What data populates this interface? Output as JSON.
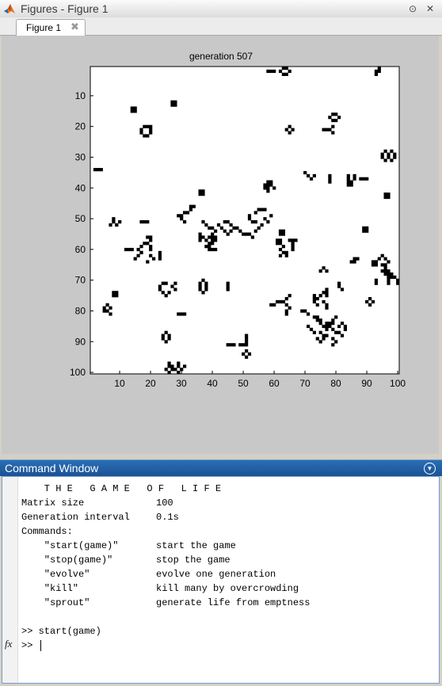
{
  "figures_window": {
    "title": "Figures - Figure 1",
    "tab_label": "Figure 1"
  },
  "figure": {
    "title": "generation 507",
    "x_ticks": [
      "10",
      "20",
      "30",
      "40",
      "50",
      "60",
      "70",
      "80",
      "90",
      "100"
    ],
    "y_ticks": [
      "10",
      "20",
      "30",
      "40",
      "50",
      "60",
      "70",
      "80",
      "90",
      "100"
    ],
    "xlim": [
      1,
      100
    ],
    "ylim": [
      1,
      100
    ],
    "y_axis": "reversed",
    "grid": false,
    "live_cells": [
      [
        2,
        58
      ],
      [
        2,
        59
      ],
      [
        2,
        60
      ],
      [
        1,
        63
      ],
      [
        1,
        64
      ],
      [
        3,
        63
      ],
      [
        3,
        64
      ],
      [
        2,
        62
      ],
      [
        2,
        65
      ],
      [
        2,
        93
      ],
      [
        3,
        93
      ],
      [
        1,
        94
      ],
      [
        2,
        94
      ],
      [
        12,
        27
      ],
      [
        12,
        28
      ],
      [
        13,
        27
      ],
      [
        13,
        28
      ],
      [
        14,
        14
      ],
      [
        15,
        14
      ],
      [
        14,
        15
      ],
      [
        15,
        15
      ],
      [
        16,
        79
      ],
      [
        16,
        80
      ],
      [
        18,
        79
      ],
      [
        18,
        80
      ],
      [
        17,
        78
      ],
      [
        17,
        81
      ],
      [
        20,
        18
      ],
      [
        20,
        19
      ],
      [
        20,
        20
      ],
      [
        22,
        17
      ],
      [
        22,
        20
      ],
      [
        23,
        18
      ],
      [
        23,
        19
      ],
      [
        21,
        17
      ],
      [
        21,
        20
      ],
      [
        20,
        65
      ],
      [
        21,
        64
      ],
      [
        21,
        66
      ],
      [
        22,
        65
      ],
      [
        21,
        76
      ],
      [
        21,
        77
      ],
      [
        21,
        78
      ],
      [
        20,
        79
      ],
      [
        22,
        79
      ],
      [
        29,
        95
      ],
      [
        30,
        95
      ],
      [
        28,
        96
      ],
      [
        31,
        96
      ],
      [
        29,
        97
      ],
      [
        30,
        97
      ],
      [
        28,
        98
      ],
      [
        31,
        98
      ],
      [
        29,
        99
      ],
      [
        30,
        99
      ],
      [
        34,
        2
      ],
      [
        34,
        3
      ],
      [
        34,
        4
      ],
      [
        35,
        70
      ],
      [
        36,
        71
      ],
      [
        37,
        72
      ],
      [
        36,
        73
      ],
      [
        36,
        78
      ],
      [
        37,
        78
      ],
      [
        38,
        78
      ],
      [
        36,
        84
      ],
      [
        37,
        84
      ],
      [
        38,
        84
      ],
      [
        38,
        85
      ],
      [
        39,
        85
      ],
      [
        37,
        86
      ],
      [
        36,
        86
      ],
      [
        39,
        84
      ],
      [
        37,
        88
      ],
      [
        37,
        89
      ],
      [
        37,
        90
      ],
      [
        38,
        58
      ],
      [
        39,
        58
      ],
      [
        40,
        58
      ],
      [
        41,
        58
      ],
      [
        39,
        57
      ],
      [
        40,
        57
      ],
      [
        38,
        59
      ],
      [
        39,
        59
      ],
      [
        40,
        60
      ],
      [
        41,
        36
      ],
      [
        41,
        37
      ],
      [
        42,
        36
      ],
      [
        42,
        37
      ],
      [
        42,
        96
      ],
      [
        43,
        96
      ],
      [
        42,
        97
      ],
      [
        43,
        97
      ],
      [
        46,
        33
      ],
      [
        46,
        34
      ],
      [
        47,
        33
      ],
      [
        48,
        31
      ],
      [
        48,
        32
      ],
      [
        49,
        30
      ],
      [
        50,
        30
      ],
      [
        49,
        29
      ],
      [
        51,
        31
      ],
      [
        47,
        55
      ],
      [
        47,
        56
      ],
      [
        47,
        57
      ],
      [
        48,
        54
      ],
      [
        49,
        52
      ],
      [
        50,
        52
      ],
      [
        51,
        53
      ],
      [
        51,
        54
      ],
      [
        50,
        57
      ],
      [
        51,
        58
      ],
      [
        49,
        59
      ],
      [
        50,
        8
      ],
      [
        51,
        8
      ],
      [
        52,
        7
      ],
      [
        52,
        9
      ],
      [
        51,
        10
      ],
      [
        51,
        17
      ],
      [
        51,
        18
      ],
      [
        51,
        19
      ],
      [
        51,
        37
      ],
      [
        52,
        38
      ],
      [
        53,
        39
      ],
      [
        53,
        40
      ],
      [
        54,
        41
      ],
      [
        51,
        44
      ],
      [
        51,
        45
      ],
      [
        52,
        46
      ],
      [
        53,
        47
      ],
      [
        53,
        48
      ],
      [
        54,
        49
      ],
      [
        55,
        50
      ],
      [
        55,
        51
      ],
      [
        55,
        52
      ],
      [
        56,
        53
      ],
      [
        54,
        54
      ],
      [
        53,
        55
      ],
      [
        52,
        56
      ],
      [
        52,
        42
      ],
      [
        53,
        43
      ],
      [
        54,
        44
      ],
      [
        55,
        45
      ],
      [
        54,
        46
      ],
      [
        53,
        89
      ],
      [
        53,
        90
      ],
      [
        54,
        89
      ],
      [
        54,
        90
      ],
      [
        54,
        62
      ],
      [
        54,
        63
      ],
      [
        55,
        62
      ],
      [
        55,
        63
      ],
      [
        55,
        36
      ],
      [
        56,
        36
      ],
      [
        57,
        36
      ],
      [
        56,
        37
      ],
      [
        57,
        38
      ],
      [
        56,
        39
      ],
      [
        55,
        40
      ],
      [
        56,
        40
      ],
      [
        57,
        40
      ],
      [
        56,
        41
      ],
      [
        57,
        41
      ],
      [
        58,
        39
      ],
      [
        58,
        40
      ],
      [
        59,
        38
      ],
      [
        59,
        39
      ],
      [
        60,
        39
      ],
      [
        60,
        40
      ],
      [
        60,
        41
      ],
      [
        56,
        19
      ],
      [
        56,
        20
      ],
      [
        57,
        20
      ],
      [
        58,
        18
      ],
      [
        58,
        19
      ],
      [
        59,
        17
      ],
      [
        60,
        16
      ],
      [
        61,
        17
      ],
      [
        59,
        20
      ],
      [
        60,
        20
      ],
      [
        57,
        65
      ],
      [
        57,
        66
      ],
      [
        57,
        67
      ],
      [
        57,
        61
      ],
      [
        57,
        62
      ],
      [
        58,
        61
      ],
      [
        58,
        62
      ],
      [
        59,
        63
      ],
      [
        60,
        62
      ],
      [
        61,
        63
      ],
      [
        61,
        64
      ],
      [
        62,
        64
      ],
      [
        62,
        62
      ],
      [
        58,
        66
      ],
      [
        59,
        66
      ],
      [
        60,
        66
      ],
      [
        60,
        12
      ],
      [
        60,
        13
      ],
      [
        60,
        14
      ],
      [
        61,
        23
      ],
      [
        62,
        23
      ],
      [
        63,
        23
      ],
      [
        61,
        17
      ],
      [
        62,
        16
      ],
      [
        63,
        15
      ],
      [
        62,
        20
      ],
      [
        63,
        21
      ],
      [
        64,
        19
      ],
      [
        62,
        95
      ],
      [
        63,
        96
      ],
      [
        64,
        97
      ],
      [
        63,
        94
      ],
      [
        64,
        93
      ],
      [
        65,
        95
      ],
      [
        65,
        96
      ],
      [
        63,
        86
      ],
      [
        63,
        87
      ],
      [
        64,
        85
      ],
      [
        64,
        86
      ],
      [
        64,
        92
      ],
      [
        64,
        93
      ],
      [
        65,
        92
      ],
      [
        65,
        93
      ],
      [
        66,
        96
      ],
      [
        67,
        95
      ],
      [
        67,
        96
      ],
      [
        67,
        97
      ],
      [
        68,
        96
      ],
      [
        68,
        97
      ],
      [
        69,
        98
      ],
      [
        66,
        76
      ],
      [
        67,
        75
      ],
      [
        67,
        77
      ],
      [
        68,
        98
      ],
      [
        69,
        99
      ],
      [
        70,
        100
      ],
      [
        71,
        100
      ],
      [
        70,
        93
      ],
      [
        71,
        93
      ],
      [
        69,
        97
      ],
      [
        70,
        97
      ],
      [
        71,
        97
      ],
      [
        71,
        24
      ],
      [
        71,
        25
      ],
      [
        72,
        23
      ],
      [
        73,
        23
      ],
      [
        74,
        24
      ],
      [
        75,
        25
      ],
      [
        74,
        26
      ],
      [
        72,
        27
      ],
      [
        71,
        28
      ],
      [
        73,
        28
      ],
      [
        71,
        36
      ],
      [
        72,
        36
      ],
      [
        73,
        36
      ],
      [
        71,
        38
      ],
      [
        72,
        38
      ],
      [
        73,
        38
      ],
      [
        70,
        37
      ],
      [
        74,
        37
      ],
      [
        71,
        45
      ],
      [
        72,
        45
      ],
      [
        73,
        45
      ],
      [
        71,
        81
      ],
      [
        72,
        81
      ],
      [
        73,
        82
      ],
      [
        73,
        77
      ],
      [
        74,
        77
      ],
      [
        74,
        76
      ],
      [
        75,
        75
      ],
      [
        75,
        77
      ],
      [
        74,
        8
      ],
      [
        75,
        8
      ],
      [
        74,
        9
      ],
      [
        75,
        9
      ],
      [
        75,
        73
      ],
      [
        76,
        73
      ],
      [
        77,
        73
      ],
      [
        76,
        74
      ],
      [
        78,
        74
      ],
      [
        77,
        76
      ],
      [
        78,
        77
      ],
      [
        79,
        77
      ],
      [
        77,
        61
      ],
      [
        77,
        62
      ],
      [
        77,
        63
      ],
      [
        76,
        64
      ],
      [
        75,
        65
      ],
      [
        78,
        64
      ],
      [
        79,
        65
      ],
      [
        78,
        60
      ],
      [
        78,
        59
      ],
      [
        80,
        64
      ],
      [
        81,
        64
      ],
      [
        77,
        90
      ],
      [
        78,
        91
      ],
      [
        77,
        92
      ],
      [
        76,
        91
      ],
      [
        79,
        5
      ],
      [
        80,
        5
      ],
      [
        80,
        6
      ],
      [
        79,
        7
      ],
      [
        78,
        6
      ],
      [
        81,
        7
      ],
      [
        80,
        69
      ],
      [
        80,
        70
      ],
      [
        81,
        71
      ],
      [
        82,
        73
      ],
      [
        82,
        74
      ],
      [
        83,
        74
      ],
      [
        83,
        75
      ],
      [
        84,
        75
      ],
      [
        85,
        76
      ],
      [
        85,
        77
      ],
      [
        84,
        78
      ],
      [
        84,
        79
      ],
      [
        83,
        79
      ],
      [
        82,
        80
      ],
      [
        84,
        82
      ],
      [
        85,
        83
      ],
      [
        86,
        83
      ],
      [
        85,
        81
      ],
      [
        81,
        29
      ],
      [
        81,
        30
      ],
      [
        81,
        31
      ],
      [
        84,
        77
      ],
      [
        85,
        77
      ],
      [
        86,
        77
      ],
      [
        85,
        78
      ],
      [
        86,
        79
      ],
      [
        87,
        80
      ],
      [
        87,
        81
      ],
      [
        88,
        82
      ],
      [
        85,
        71
      ],
      [
        86,
        72
      ],
      [
        87,
        73
      ],
      [
        87,
        75
      ],
      [
        88,
        76
      ],
      [
        88,
        77
      ],
      [
        89,
        74
      ],
      [
        89,
        76
      ],
      [
        90,
        75
      ],
      [
        89,
        79
      ],
      [
        90,
        80
      ],
      [
        91,
        79
      ],
      [
        87,
        25
      ],
      [
        88,
        24
      ],
      [
        89,
        24
      ],
      [
        90,
        25
      ],
      [
        89,
        26
      ],
      [
        88,
        26
      ],
      [
        88,
        51
      ],
      [
        89,
        51
      ],
      [
        90,
        51
      ],
      [
        91,
        45
      ],
      [
        91,
        46
      ],
      [
        91,
        47
      ],
      [
        91,
        49
      ],
      [
        91,
        50
      ],
      [
        91,
        51
      ],
      [
        93,
        51
      ],
      [
        94,
        50
      ],
      [
        95,
        51
      ],
      [
        94,
        52
      ],
      [
        97,
        26
      ],
      [
        98,
        26
      ],
      [
        98,
        27
      ],
      [
        97,
        29
      ],
      [
        98,
        29
      ],
      [
        99,
        28
      ],
      [
        99,
        25
      ],
      [
        99,
        27
      ],
      [
        100,
        26
      ],
      [
        100,
        29
      ],
      [
        99,
        30
      ],
      [
        98,
        31
      ]
    ]
  },
  "command_window": {
    "title": "Command Window",
    "lines": [
      {
        "c1": "    T H E   G A M E   O F   L I F E",
        "c2": ""
      },
      {
        "c1": "Matrix size",
        "c2": "100"
      },
      {
        "c1": "Generation interval",
        "c2": "0.1s"
      },
      {
        "c1": "Commands:",
        "c2": ""
      },
      {
        "c1": "    \"start(game)\"",
        "c2": "start the game"
      },
      {
        "c1": "    \"stop(game)\"",
        "c2": "stop the game"
      },
      {
        "c1": "    \"evolve\"",
        "c2": "evolve one generation"
      },
      {
        "c1": "    \"kill\"",
        "c2": "kill many by overcrowding"
      },
      {
        "c1": "    \"sprout\"",
        "c2": "generate life from emptness"
      },
      {
        "c1": "",
        "c2": ""
      },
      {
        "c1": ">> start(game)",
        "c2": ""
      }
    ],
    "prompt": ">>",
    "fx_label": "fx"
  }
}
